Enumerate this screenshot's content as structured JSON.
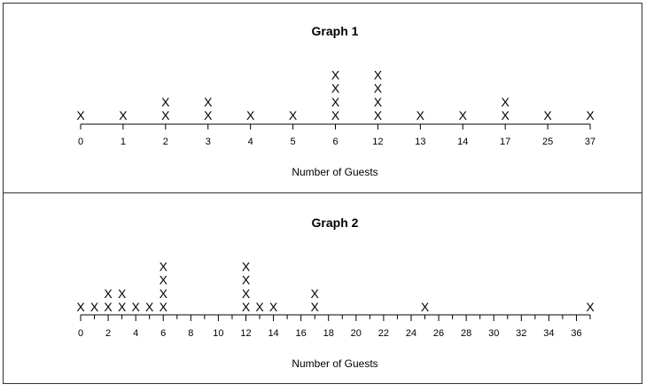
{
  "chart_data": [
    {
      "type": "dotplot",
      "title": "Graph 1",
      "xlabel": "Number of Guests",
      "axis_kind": "categorical",
      "mark": "X",
      "categories": [
        "0",
        "1",
        "2",
        "3",
        "4",
        "5",
        "6",
        "12",
        "13",
        "14",
        "17",
        "25",
        "37"
      ],
      "counts": [
        1,
        1,
        2,
        2,
        1,
        1,
        4,
        4,
        1,
        1,
        2,
        1,
        1
      ]
    },
    {
      "type": "dotplot",
      "title": "Graph 2",
      "xlabel": "Number of Guests",
      "axis_kind": "numeric",
      "mark": "X",
      "xlim": [
        0,
        37
      ],
      "tick_labels": [
        "0",
        "2",
        "4",
        "6",
        "8",
        "10",
        "12",
        "14",
        "16",
        "18",
        "20",
        "22",
        "24",
        "26",
        "28",
        "30",
        "32",
        "34",
        "36"
      ],
      "points": [
        {
          "x": 0,
          "count": 1
        },
        {
          "x": 1,
          "count": 1
        },
        {
          "x": 2,
          "count": 2
        },
        {
          "x": 3,
          "count": 2
        },
        {
          "x": 4,
          "count": 1
        },
        {
          "x": 5,
          "count": 1
        },
        {
          "x": 6,
          "count": 4
        },
        {
          "x": 12,
          "count": 4
        },
        {
          "x": 13,
          "count": 1
        },
        {
          "x": 14,
          "count": 1
        },
        {
          "x": 17,
          "count": 2
        },
        {
          "x": 25,
          "count": 1
        },
        {
          "x": 37,
          "count": 1
        }
      ]
    }
  ]
}
